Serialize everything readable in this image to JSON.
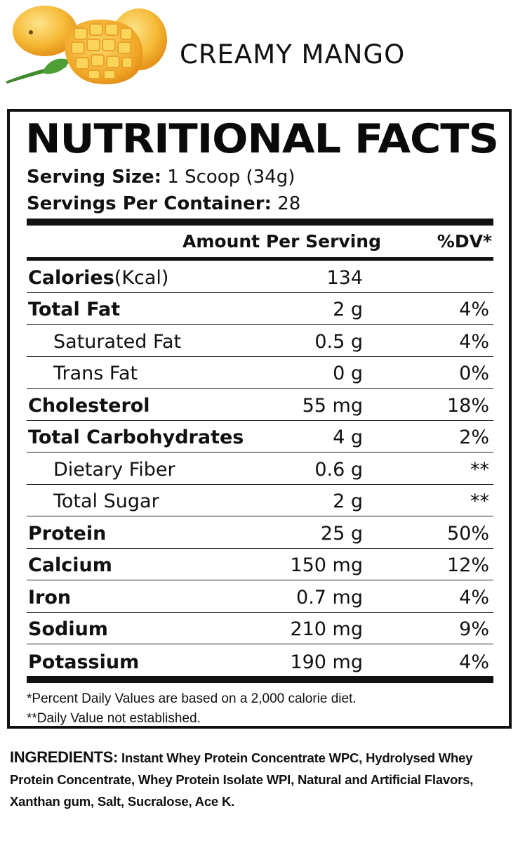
{
  "flavor": "CREAMY MANGO",
  "panel": {
    "title": "NUTRITIONAL FACTS",
    "serving_size_label": "Serving Size:",
    "serving_size_value": "1 Scoop (34g)",
    "servings_label": "Servings Per Container:",
    "servings_value": "28",
    "col_amount": "Amount Per Serving",
    "col_dv": "%DV*",
    "rows": [
      {
        "name": "Calories",
        "unit": "(Kcal)",
        "amount": "134",
        "dv": "",
        "style": "bold"
      },
      {
        "name": "Total Fat",
        "unit": "",
        "amount": "2 g",
        "dv": "4%",
        "style": "bold"
      },
      {
        "name": "Saturated Fat",
        "unit": "",
        "amount": "0.5 g",
        "dv": "4%",
        "style": "indent"
      },
      {
        "name": "Trans Fat",
        "unit": "",
        "amount": "0 g",
        "dv": "0%",
        "style": "indent"
      },
      {
        "name": "Cholesterol",
        "unit": "",
        "amount": "55 mg",
        "dv": "18%",
        "style": "bold"
      },
      {
        "name": "Total Carbohydrates",
        "unit": "",
        "amount": "4 g",
        "dv": "2%",
        "style": "bold"
      },
      {
        "name": "Dietary Fiber",
        "unit": "",
        "amount": "0.6 g",
        "dv": "**",
        "style": "indent"
      },
      {
        "name": "Total Sugar",
        "unit": "",
        "amount": "2 g",
        "dv": "**",
        "style": "indent"
      },
      {
        "name": "Protein",
        "unit": "",
        "amount": "25 g",
        "dv": "50%",
        "style": "bold"
      },
      {
        "name": "Calcium",
        "unit": "",
        "amount": "150 mg",
        "dv": "12%",
        "style": "bold"
      },
      {
        "name": "Iron",
        "unit": "",
        "amount": "0.7 mg",
        "dv": "4%",
        "style": "bold"
      },
      {
        "name": "Sodium",
        "unit": "",
        "amount": "210 mg",
        "dv": "9%",
        "style": "bold"
      },
      {
        "name": "Potassium",
        "unit": "",
        "amount": "190 mg",
        "dv": "4%",
        "style": "bold"
      }
    ],
    "footnote1": "*Percent Daily Values are based on a 2,000 calorie diet.",
    "footnote2": "**Daily Value not established."
  },
  "ingredients": {
    "label": "INGREDIENTS:",
    "text": "Instant Whey Protein Concentrate WPC, Hydrolysed Whey Protein Concentrate, Whey Protein Isolate WPI, Natural and Artificial Flavors, Xanthan gum, Salt, Sucralose, Ace K."
  },
  "colors": {
    "mango_light": "#f7c548",
    "mango_dark": "#e89a17",
    "leaf": "#3f8a2c",
    "ink": "#111111"
  }
}
